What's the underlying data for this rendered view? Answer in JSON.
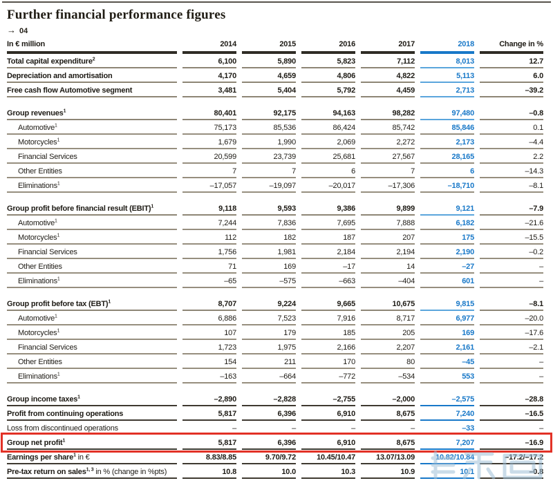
{
  "page": {
    "title": "Further financial performance figures",
    "arrow_glyph": "→",
    "figure_number": "04"
  },
  "table": {
    "unit_header": "In € million",
    "year_headers": [
      "2014",
      "2015",
      "2016",
      "2017",
      "2018"
    ],
    "change_header": "Change in %",
    "highlight_year": "2018",
    "rows": [
      {
        "label": "Total capital expenditure^2^",
        "bold": true,
        "values": [
          "6,100",
          "5,890",
          "5,823",
          "7,112",
          "8,013",
          "12.7"
        ]
      },
      {
        "label": "Depreciation and amortisation",
        "bold": true,
        "values": [
          "4,170",
          "4,659",
          "4,806",
          "4,822",
          "5,113",
          "6.0"
        ]
      },
      {
        "label": "Free cash flow Automotive segment",
        "bold": true,
        "values": [
          "3,481",
          "5,404",
          "5,792",
          "4,459",
          "2,713",
          "–39.2"
        ]
      },
      {
        "label": "Group revenues^1^",
        "bold": true,
        "gap": true,
        "values": [
          "80,401",
          "92,175",
          "94,163",
          "98,282",
          "97,480",
          "–0.8"
        ]
      },
      {
        "label": "Automotive^1^",
        "indent": true,
        "values": [
          "75,173",
          "85,536",
          "86,424",
          "85,742",
          "85,846",
          "0.1"
        ]
      },
      {
        "label": "Motorcycles^1^",
        "indent": true,
        "values": [
          "1,679",
          "1,990",
          "2,069",
          "2,272",
          "2,173",
          "–4.4"
        ]
      },
      {
        "label": "Financial Services",
        "indent": true,
        "values": [
          "20,599",
          "23,739",
          "25,681",
          "27,567",
          "28,165",
          "2.2"
        ]
      },
      {
        "label": "Other Entities",
        "indent": true,
        "values": [
          "7",
          "7",
          "6",
          "7",
          "6",
          "–14.3"
        ]
      },
      {
        "label": "Eliminations^1^",
        "indent": true,
        "values": [
          "–17,057",
          "–19,097",
          "–20,017",
          "–17,306",
          "–18,710",
          "–8.1"
        ]
      },
      {
        "label": "Group profit before financial result (EBIT)^1^",
        "bold": true,
        "gap": true,
        "values": [
          "9,118",
          "9,593",
          "9,386",
          "9,899",
          "9,121",
          "–7.9"
        ]
      },
      {
        "label": "Automotive^1^",
        "indent": true,
        "values": [
          "7,244",
          "7,836",
          "7,695",
          "7,888",
          "6,182",
          "–21.6"
        ]
      },
      {
        "label": "Motorcycles^1^",
        "indent": true,
        "values": [
          "112",
          "182",
          "187",
          "207",
          "175",
          "–15.5"
        ]
      },
      {
        "label": "Financial Services",
        "indent": true,
        "values": [
          "1,756",
          "1,981",
          "2,184",
          "2,194",
          "2,190",
          "–0.2"
        ]
      },
      {
        "label": "Other Entities",
        "indent": true,
        "values": [
          "71",
          "169",
          "–17",
          "14",
          "–27",
          "–"
        ]
      },
      {
        "label": "Eliminations^1^",
        "indent": true,
        "values": [
          "–65",
          "–575",
          "–663",
          "–404",
          "601",
          "–"
        ]
      },
      {
        "label": "Group profit before tax (EBT)^1^",
        "bold": true,
        "gap": true,
        "values": [
          "8,707",
          "9,224",
          "9,665",
          "10,675",
          "9,815",
          "–8.1"
        ]
      },
      {
        "label": "Automotive^1^",
        "indent": true,
        "values": [
          "6,886",
          "7,523",
          "7,916",
          "8,717",
          "6,977",
          "–20.0"
        ]
      },
      {
        "label": "Motorcycles^1^",
        "indent": true,
        "values": [
          "107",
          "179",
          "185",
          "205",
          "169",
          "–17.6"
        ]
      },
      {
        "label": "Financial Services",
        "indent": true,
        "values": [
          "1,723",
          "1,975",
          "2,166",
          "2,207",
          "2,161",
          "–2.1"
        ]
      },
      {
        "label": "Other Entities",
        "indent": true,
        "values": [
          "154",
          "211",
          "170",
          "80",
          "–45",
          "–"
        ]
      },
      {
        "label": "Eliminations^1^",
        "indent": true,
        "values": [
          "–163",
          "–664",
          "–772",
          "–534",
          "553",
          "–"
        ]
      },
      {
        "label": "Group income taxes^1^",
        "bold": true,
        "dark": true,
        "gap": true,
        "values": [
          "–2,890",
          "–2,828",
          "–2,755",
          "–2,000",
          "–2,575",
          "–28.8"
        ]
      },
      {
        "label": "Profit from continuing operations",
        "bold": true,
        "dark": true,
        "values": [
          "5,817",
          "6,396",
          "6,910",
          "8,675",
          "7,240",
          "–16.5"
        ]
      },
      {
        "label": "Loss from discontinued operations",
        "noline": true,
        "values": [
          "–",
          "–",
          "–",
          "–",
          "–33",
          "–"
        ]
      },
      {
        "label": "Group net profit^1^",
        "bold": true,
        "dark": true,
        "box": true,
        "values": [
          "5,817",
          "6,396",
          "6,910",
          "8,675",
          "7,207",
          "–16.9"
        ]
      },
      {
        "label": "Earnings per share^1^",
        "suffix": " in €",
        "bold": true,
        "dark": true,
        "values": [
          "8.83/8.85",
          "9.70/9.72",
          "10.45/10.47",
          "13.07/13.09",
          "10.82/10.84",
          "–17.2/–17.2"
        ]
      },
      {
        "label": "Pre-tax return on sales^1, 3^",
        "suffix": " in % (change in %pts)",
        "bold": true,
        "dark": true,
        "values": [
          "10.8",
          "10.0",
          "10.3",
          "10.9",
          "10.1",
          "–0.8"
        ]
      }
    ]
  },
  "colors": {
    "accent_blue": "#1878c8",
    "blue_underline": "#5aa5dc",
    "highlight_red": "#e23126",
    "line_gray": "#8d8575",
    "line_dark": "#3e3930",
    "text": "#1d1a14",
    "watermark": "#9fc0d8"
  }
}
